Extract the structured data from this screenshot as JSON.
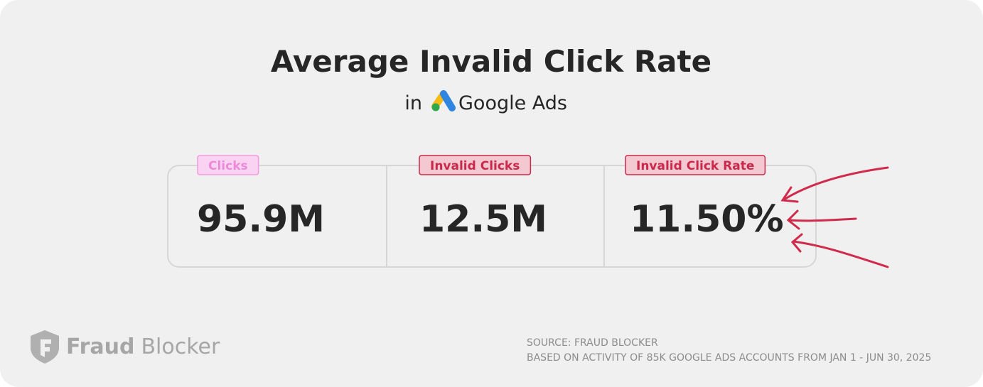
{
  "header": {
    "title": "Average Invalid Click Rate",
    "subtitle_prefix": "in",
    "platform": "Google Ads"
  },
  "stats": [
    {
      "label": "Clicks",
      "value": "95.9M"
    },
    {
      "label": "Invalid Clicks",
      "value": "12.5M"
    },
    {
      "label": "Invalid Click Rate",
      "value": "11.50%"
    }
  ],
  "footer": {
    "brand_bold": "Fraud",
    "brand_regular": "Blocker",
    "source": "SOURCE: FRAUD BLOCKER",
    "note": "BASED ON ACTIVITY OF 85K GOOGLE ADS ACCOUNTS FROM JAN 1 - JUN 30, 2025"
  }
}
